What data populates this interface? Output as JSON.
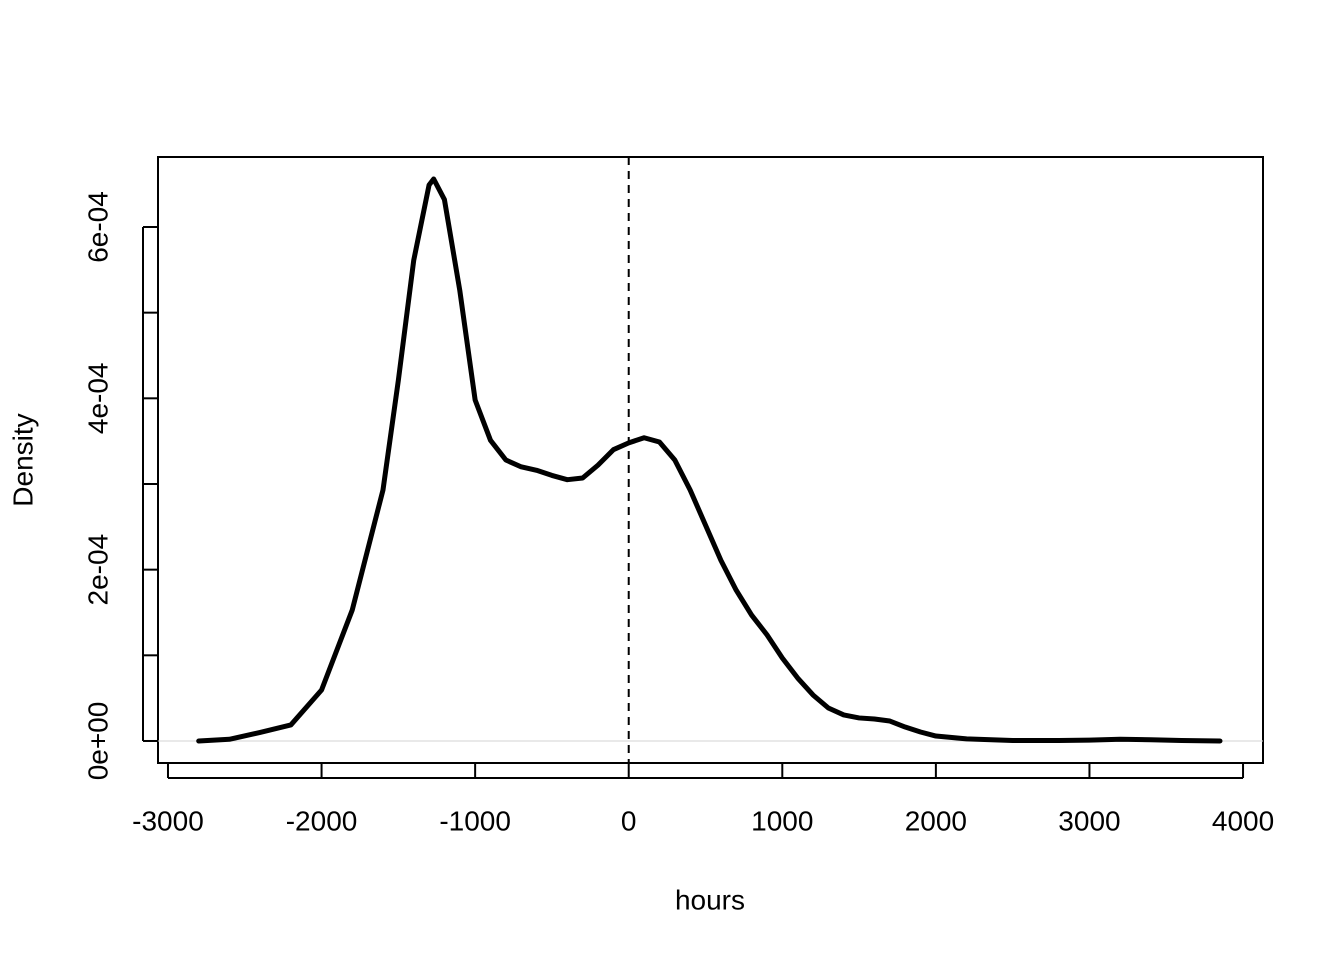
{
  "chart_data": {
    "type": "line",
    "x_label": "hours",
    "y_label": "Density",
    "x": [
      -2800,
      -2600,
      -2400,
      -2200,
      -2000,
      -1800,
      -1600,
      -1500,
      -1400,
      -1300,
      -1270,
      -1200,
      -1100,
      -1000,
      -900,
      -800,
      -700,
      -600,
      -500,
      -400,
      -300,
      -200,
      -100,
      0,
      100,
      200,
      300,
      400,
      500,
      600,
      700,
      800,
      900,
      1000,
      1100,
      1200,
      1300,
      1400,
      1500,
      1600,
      1700,
      1800,
      1900,
      2000,
      2200,
      2500,
      2800,
      3000,
      3200,
      3400,
      3600,
      3850
    ],
    "series": [
      {
        "name": "Density",
        "color": "#000000",
        "values": [
          0,
          2e-06,
          1e-05,
          1.87e-05,
          5.95e-05,
          0.000153,
          0.000293,
          0.000421,
          0.000561,
          0.000649,
          0.000656,
          0.000632,
          0.000526,
          0.000398,
          0.000351,
          0.000328,
          0.00032,
          0.000316,
          0.00031,
          0.000305,
          0.000307,
          0.000322,
          0.00034,
          0.000348,
          0.000354,
          0.000349,
          0.000328,
          0.000293,
          0.000252,
          0.000211,
          0.000176,
          0.000147,
          0.000124,
          9.69e-05,
          7.35e-05,
          5.37e-05,
          3.85e-05,
          3.04e-05,
          2.69e-05,
          2.57e-05,
          2.33e-05,
          1.63e-05,
          1.05e-05,
          5.8e-06,
          2.5e-06,
          5e-07,
          5e-07,
          1e-06,
          2e-06,
          1.5e-06,
          5e-07,
          0
        ]
      }
    ],
    "xlim": [
      -3065,
      4130
    ],
    "ylim": [
      -2.57e-05,
      0.0006817
    ],
    "xticks": [
      -3000,
      -2000,
      -1000,
      0,
      1000,
      2000,
      3000,
      4000
    ],
    "yticks": [
      {
        "value": 0,
        "label": "0e+00"
      },
      {
        "value": 0.0002,
        "label": "2e-04"
      },
      {
        "value": 0.0004,
        "label": "4e-04"
      },
      {
        "value": 0.0006,
        "label": "6e-04"
      }
    ],
    "yminorticks": [
      0.0001,
      0.0003,
      0.0005
    ],
    "vline": 0,
    "hline": 0,
    "hline_color": "#d3d3d3"
  }
}
